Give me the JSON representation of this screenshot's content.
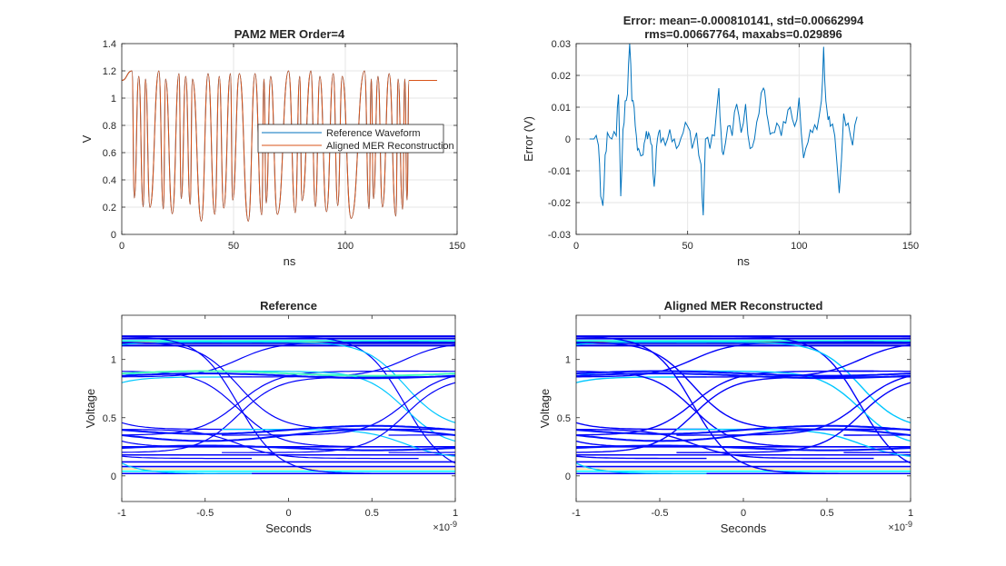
{
  "chart_data": [
    {
      "id": "p1",
      "type": "line",
      "title": [
        "PAM2 MER Order=4"
      ],
      "xlabel": "ns",
      "ylabel": "V",
      "xlim": [
        0,
        150
      ],
      "ylim": [
        0,
        1.4
      ],
      "xticks": [
        0,
        50,
        100,
        150
      ],
      "xtick_labels": [
        "0",
        "50",
        "100",
        "150"
      ],
      "yticks": [
        0,
        0.2,
        0.4,
        0.6,
        0.8,
        1,
        1.2,
        1.4
      ],
      "ytick_labels": [
        "0",
        "0.2",
        "0.4",
        "0.6",
        "0.8",
        "1",
        "1.2",
        "1.4"
      ],
      "grid": true,
      "legend": {
        "placement": "east",
        "entries": [
          "Reference Waveform",
          "Aligned MER Reconstruction"
        ]
      },
      "bit_rate_symbols_per_ns": 0.5,
      "waveform": {
        "x_start": 0,
        "x_end": 141,
        "initial_level": 1.13,
        "final_level": 1.13,
        "transitions_ns": [
          5,
          6,
          8,
          10,
          11,
          13,
          17,
          19,
          20,
          23,
          26,
          27,
          29,
          31,
          32,
          36,
          39,
          42,
          44,
          46,
          49,
          50,
          53,
          57,
          60,
          63,
          64,
          65,
          67,
          70,
          75,
          78,
          80,
          81,
          85,
          87,
          89,
          92,
          95,
          97,
          99,
          103,
          109,
          111,
          112,
          113,
          115,
          117,
          120,
          123,
          124,
          126,
          127,
          128
        ],
        "high": 1.2,
        "low": 0.1
      },
      "series": [
        {
          "name": "Reference Waveform",
          "color": "#0072BD"
        },
        {
          "name": "Aligned MER Reconstruction",
          "color": "#D95319"
        }
      ]
    },
    {
      "id": "p2",
      "type": "line",
      "title": [
        "Error: mean=-0.000810141, std=0.00662994",
        "rms=0.00667764, maxabs=0.029896"
      ],
      "xlabel": "ns",
      "ylabel": "Error (V)",
      "xlim": [
        0,
        150
      ],
      "ylim": [
        -0.03,
        0.03
      ],
      "xticks": [
        0,
        50,
        100,
        150
      ],
      "xtick_labels": [
        "0",
        "50",
        "100",
        "150"
      ],
      "yticks": [
        -0.03,
        -0.02,
        -0.01,
        0,
        0.01,
        0.02,
        0.03
      ],
      "ytick_labels": [
        "-0.03",
        "-0.02",
        "-0.01",
        "0",
        "0.01",
        "0.02",
        "0.03"
      ],
      "grid": true,
      "series": [
        {
          "name": "",
          "color": "#0072BD",
          "x": [
            6,
            8,
            10,
            11,
            12,
            13,
            14,
            16,
            18,
            19,
            20,
            21,
            22,
            23,
            24,
            25,
            26,
            27,
            28,
            30,
            31,
            32,
            33,
            34,
            35,
            36,
            37,
            38,
            40,
            42,
            44,
            46,
            48,
            50,
            52,
            54,
            56,
            57,
            58,
            60,
            62,
            64,
            65,
            66,
            68,
            70,
            72,
            74,
            76,
            78,
            80,
            82,
            84,
            85,
            86,
            88,
            90,
            92,
            94,
            96,
            98,
            100,
            102,
            104,
            106,
            108,
            110,
            111,
            112,
            113,
            114,
            116,
            118,
            120,
            122,
            124,
            126
          ],
          "y": [
            0,
            0,
            -0.002,
            -0.018,
            -0.021,
            -0.005,
            0.002,
            0,
            0.001,
            0.014,
            -0.018,
            0.003,
            0.012,
            0.014,
            0.03,
            0.012,
            0.01,
            0.001,
            -0.003,
            -0.005,
            0,
            0,
            0.001,
            -0.002,
            -0.015,
            -0.003,
            0.002,
            -0.001,
            -0.002,
            0.003,
            0,
            -0.002,
            0.002,
            0.004,
            -0.003,
            0.002,
            -0.008,
            -0.024,
            0,
            -0.003,
            0.001,
            0.016,
            0.002,
            -0.005,
            0.004,
            0.001,
            0.011,
            0.002,
            0.011,
            -0.003,
            0,
            0.008,
            0.016,
            0.012,
            0.006,
            0.002,
            0.005,
            0.001,
            0.005,
            0.01,
            0.004,
            0.013,
            -0.006,
            -0.001,
            0.002,
            0.003,
            0.012,
            0.029,
            0.012,
            0.006,
            0.004,
            0.001,
            -0.017,
            0.008,
            0.005,
            -0.002,
            0.007
          ]
        }
      ]
    },
    {
      "id": "p3",
      "type": "heatmap",
      "title": [
        "Reference"
      ],
      "xlabel": "Seconds",
      "ylabel": "Voltage",
      "x_exponent_label": "×10",
      "x_exponent": "-9",
      "xlim": [
        -1,
        1
      ],
      "ylim": [
        -0.22,
        1.38
      ],
      "xticks": [
        -1,
        -0.5,
        0,
        0.5,
        1
      ],
      "xtick_labels": [
        "-1",
        "-0.5",
        "0",
        "0.5",
        "1"
      ],
      "yticks": [
        0,
        0.5,
        1
      ],
      "ytick_labels": [
        "0",
        "0.5",
        "1"
      ],
      "grid": false,
      "colormap": "jet",
      "levels": {
        "high": 1.2,
        "low": 0.02,
        "mid_high": 0.85,
        "mid_low": 0.4
      }
    },
    {
      "id": "p4",
      "type": "heatmap",
      "title": [
        "Aligned MER Reconstructed"
      ],
      "xlabel": "Seconds",
      "ylabel": "Voltage",
      "x_exponent_label": "×10",
      "x_exponent": "-9",
      "xlim": [
        -1,
        1
      ],
      "ylim": [
        -0.22,
        1.38
      ],
      "xticks": [
        -1,
        -0.5,
        0,
        0.5,
        1
      ],
      "xtick_labels": [
        "-1",
        "-0.5",
        "0",
        "0.5",
        "1"
      ],
      "yticks": [
        0,
        0.5,
        1
      ],
      "ytick_labels": [
        "0",
        "0.5",
        "1"
      ],
      "grid": false,
      "colormap": "jet",
      "levels": {
        "high": 1.2,
        "low": 0.02,
        "mid_high": 0.85,
        "mid_low": 0.4
      }
    }
  ]
}
